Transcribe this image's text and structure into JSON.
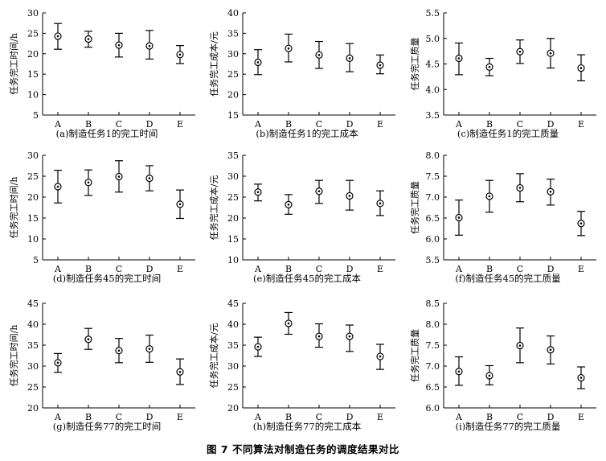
{
  "figure_title": "图 7    不同算法对制造任务的调度结果对比",
  "chart_data": [
    {
      "type": "scatter",
      "subtype": "errorbar",
      "caption": "(a)制造任务1的完工时间",
      "ylabel": "任务完工时间/h",
      "ylim": [
        5,
        30
      ],
      "yticks": [
        5,
        10,
        15,
        20,
        25,
        30
      ],
      "ytick_labels": [
        "5",
        "10",
        "15",
        "20",
        "25",
        "30"
      ],
      "categories": [
        "A",
        "B",
        "C",
        "D",
        "E"
      ],
      "values": [
        24.3,
        23.6,
        22.1,
        21.9,
        19.8
      ],
      "lower": [
        21.1,
        21.6,
        19.2,
        18.7,
        17.6
      ],
      "upper": [
        27.4,
        25.5,
        25.0,
        25.7,
        22.0
      ]
    },
    {
      "type": "scatter",
      "subtype": "errorbar",
      "caption": "(b)制造任务1的完工成本",
      "ylabel": "任务完工成本/元",
      "ylim": [
        15,
        40
      ],
      "yticks": [
        15,
        20,
        25,
        30,
        35,
        40
      ],
      "ytick_labels": [
        "15",
        "20",
        "25",
        "30",
        "35",
        "40"
      ],
      "categories": [
        "A",
        "B",
        "C",
        "D",
        "E"
      ],
      "values": [
        27.9,
        31.3,
        29.7,
        28.9,
        27.2
      ],
      "lower": [
        24.9,
        28.0,
        26.4,
        25.6,
        25.1
      ],
      "upper": [
        31.0,
        34.8,
        33.0,
        32.5,
        29.7
      ]
    },
    {
      "type": "scatter",
      "subtype": "errorbar",
      "caption": "(c)制造任务1的完工质量",
      "ylabel": "任务完工质量",
      "ylim": [
        3.5,
        5.5
      ],
      "yticks": [
        3.5,
        4.0,
        4.5,
        5.0,
        5.5
      ],
      "ytick_labels": [
        "3.5",
        "4.0",
        "4.5",
        "5.0",
        "5.5"
      ],
      "categories": [
        "A",
        "B",
        "C",
        "D",
        "E"
      ],
      "values": [
        4.61,
        4.44,
        4.74,
        4.71,
        4.42
      ],
      "lower": [
        4.29,
        4.27,
        4.51,
        4.42,
        4.17
      ],
      "upper": [
        4.91,
        4.61,
        4.97,
        5.0,
        4.68
      ]
    },
    {
      "type": "scatter",
      "subtype": "errorbar",
      "caption": "(d)制造任务45的完工时间",
      "ylabel": "任务完工时间/h",
      "ylim": [
        5,
        30
      ],
      "yticks": [
        5,
        10,
        15,
        20,
        25,
        30
      ],
      "ytick_labels": [
        "5",
        "10",
        "15",
        "20",
        "25",
        "30"
      ],
      "categories": [
        "A",
        "B",
        "C",
        "D",
        "E"
      ],
      "values": [
        22.5,
        23.5,
        24.9,
        24.5,
        18.3
      ],
      "lower": [
        18.6,
        20.4,
        21.2,
        21.5,
        14.9
      ],
      "upper": [
        26.4,
        26.5,
        28.7,
        27.5,
        21.7
      ]
    },
    {
      "type": "scatter",
      "subtype": "errorbar",
      "caption": "(e)制造任务45的完工成本",
      "ylabel": "任务完工成本/元",
      "ylim": [
        10,
        35
      ],
      "yticks": [
        10,
        15,
        20,
        25,
        30,
        35
      ],
      "ytick_labels": [
        "10",
        "15",
        "20",
        "25",
        "30",
        "35"
      ],
      "categories": [
        "A",
        "B",
        "C",
        "D",
        "E"
      ],
      "values": [
        26.2,
        23.2,
        26.4,
        25.3,
        23.5
      ],
      "lower": [
        24.1,
        20.9,
        23.5,
        21.9,
        20.6
      ],
      "upper": [
        28.1,
        25.6,
        29.0,
        29.0,
        26.5
      ]
    },
    {
      "type": "scatter",
      "subtype": "errorbar",
      "caption": "(f)制造任务45的完工质量",
      "ylabel": "任务完工质量",
      "ylim": [
        5.5,
        8.0
      ],
      "yticks": [
        5.5,
        6.0,
        6.5,
        7.0,
        7.5,
        8.0
      ],
      "ytick_labels": [
        "5.5",
        "6.0",
        "6.5",
        "7.0",
        "7.5",
        "8.0"
      ],
      "categories": [
        "A",
        "B",
        "C",
        "D",
        "E"
      ],
      "values": [
        6.51,
        7.02,
        7.22,
        7.13,
        6.37
      ],
      "lower": [
        6.09,
        6.64,
        6.89,
        6.81,
        6.08
      ],
      "upper": [
        6.93,
        7.4,
        7.56,
        7.43,
        6.66
      ]
    },
    {
      "type": "scatter",
      "subtype": "errorbar",
      "caption": "(g)制造任务77的完工时间",
      "ylabel": "任务完工时间/h",
      "ylim": [
        20,
        45
      ],
      "yticks": [
        20,
        25,
        30,
        35,
        40,
        45
      ],
      "ytick_labels": [
        "20",
        "25",
        "30",
        "35",
        "40",
        "45"
      ],
      "categories": [
        "A",
        "B",
        "C",
        "D",
        "E"
      ],
      "values": [
        30.8,
        36.4,
        33.7,
        34.1,
        28.6
      ],
      "lower": [
        28.5,
        34.0,
        30.8,
        30.9,
        25.6
      ],
      "upper": [
        33.0,
        39.0,
        36.6,
        37.4,
        31.7
      ]
    },
    {
      "type": "scatter",
      "subtype": "errorbar",
      "caption": "(h)制造任务77的完工成本",
      "ylabel": "任务完工成本/元",
      "ylim": [
        20,
        45
      ],
      "yticks": [
        20,
        25,
        30,
        35,
        40,
        45
      ],
      "ytick_labels": [
        "20",
        "25",
        "30",
        "35",
        "40",
        "45"
      ],
      "categories": [
        "A",
        "B",
        "C",
        "D",
        "E"
      ],
      "values": [
        34.6,
        40.2,
        37.1,
        37.1,
        32.3
      ],
      "lower": [
        32.3,
        37.6,
        34.5,
        33.5,
        29.2
      ],
      "upper": [
        36.9,
        42.8,
        40.1,
        39.8,
        35.2
      ]
    },
    {
      "type": "scatter",
      "subtype": "errorbar",
      "caption": "(i)制造任务77的完工质量",
      "ylabel": "任务完工质量",
      "ylim": [
        6.0,
        8.5
      ],
      "yticks": [
        6.0,
        6.5,
        7.0,
        7.5,
        8.0,
        8.5
      ],
      "ytick_labels": [
        "6.0",
        "6.5",
        "7.0",
        "7.5",
        "8.0",
        "8.5"
      ],
      "categories": [
        "A",
        "B",
        "C",
        "D",
        "E"
      ],
      "values": [
        6.87,
        6.77,
        7.49,
        7.39,
        6.72
      ],
      "lower": [
        6.54,
        6.55,
        7.08,
        7.05,
        6.46
      ],
      "upper": [
        7.22,
        7.01,
        7.91,
        7.72,
        6.98
      ]
    }
  ]
}
